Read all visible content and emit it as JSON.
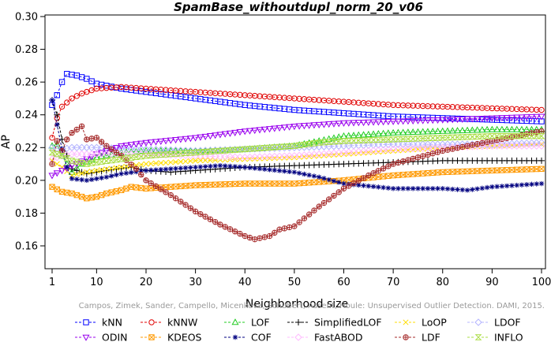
{
  "chart_data": {
    "type": "line",
    "title": "SpamBase_withoutdupl_norm_20_v06",
    "xlabel": "Neighborhood size",
    "ylabel": "AP",
    "xlim": [
      0,
      100
    ],
    "ylim": [
      0.15,
      0.3
    ],
    "x_ticks": [
      1,
      10,
      20,
      30,
      40,
      50,
      60,
      70,
      80,
      90,
      100
    ],
    "y_ticks": [
      0.16,
      0.18,
      0.2,
      0.22,
      0.24,
      0.26,
      0.28,
      0.3
    ],
    "x_tick_labels": [
      "1",
      "10",
      "20",
      "30",
      "40",
      "50",
      "60",
      "70",
      "80",
      "90",
      "100"
    ],
    "y_tick_labels": [
      "0.16",
      "0.18",
      "0.20",
      "0.22",
      "0.24",
      "0.26",
      "0.28",
      "0.30"
    ],
    "legend_position": "bottom",
    "series": [
      {
        "name": "kNN",
        "color": "#0000ff",
        "marker": "square",
        "points": [
          [
            1,
            0.246
          ],
          [
            2,
            0.252
          ],
          [
            3,
            0.26
          ],
          [
            4,
            0.265
          ],
          [
            6,
            0.264
          ],
          [
            8,
            0.262
          ],
          [
            10,
            0.259
          ],
          [
            15,
            0.256
          ],
          [
            20,
            0.254
          ],
          [
            30,
            0.25
          ],
          [
            40,
            0.246
          ],
          [
            50,
            0.243
          ],
          [
            60,
            0.241
          ],
          [
            70,
            0.239
          ],
          [
            80,
            0.238
          ],
          [
            90,
            0.237
          ],
          [
            100,
            0.236
          ]
        ]
      },
      {
        "name": "kNNW",
        "color": "#e00000",
        "marker": "circle",
        "points": [
          [
            1,
            0.226
          ],
          [
            2,
            0.238
          ],
          [
            3,
            0.245
          ],
          [
            5,
            0.25
          ],
          [
            7,
            0.253
          ],
          [
            10,
            0.256
          ],
          [
            15,
            0.257
          ],
          [
            20,
            0.256
          ],
          [
            30,
            0.254
          ],
          [
            40,
            0.252
          ],
          [
            50,
            0.25
          ],
          [
            60,
            0.248
          ],
          [
            70,
            0.246
          ],
          [
            80,
            0.245
          ],
          [
            90,
            0.244
          ],
          [
            100,
            0.243
          ]
        ]
      },
      {
        "name": "LOF",
        "color": "#22cc22",
        "marker": "triangle-up",
        "points": [
          [
            1,
            0.221
          ],
          [
            2,
            0.222
          ],
          [
            3,
            0.215
          ],
          [
            5,
            0.205
          ],
          [
            7,
            0.21
          ],
          [
            10,
            0.214
          ],
          [
            15,
            0.217
          ],
          [
            20,
            0.218
          ],
          [
            30,
            0.218
          ],
          [
            40,
            0.219
          ],
          [
            50,
            0.221
          ],
          [
            55,
            0.224
          ],
          [
            60,
            0.227
          ],
          [
            70,
            0.229
          ],
          [
            80,
            0.23
          ],
          [
            90,
            0.231
          ],
          [
            100,
            0.231
          ]
        ]
      },
      {
        "name": "SimplifiedLOF",
        "color": "#000000",
        "marker": "plus",
        "points": [
          [
            1,
            0.249
          ],
          [
            2,
            0.24
          ],
          [
            3,
            0.225
          ],
          [
            4,
            0.215
          ],
          [
            5,
            0.207
          ],
          [
            8,
            0.204
          ],
          [
            12,
            0.206
          ],
          [
            17,
            0.208
          ],
          [
            20,
            0.206
          ],
          [
            25,
            0.205
          ],
          [
            30,
            0.206
          ],
          [
            40,
            0.208
          ],
          [
            50,
            0.209
          ],
          [
            60,
            0.21
          ],
          [
            70,
            0.211
          ],
          [
            80,
            0.212
          ],
          [
            90,
            0.212
          ],
          [
            100,
            0.212
          ]
        ]
      },
      {
        "name": "LoOP",
        "color": "#ffdd00",
        "marker": "x",
        "points": [
          [
            1,
            0.212
          ],
          [
            3,
            0.208
          ],
          [
            5,
            0.203
          ],
          [
            8,
            0.205
          ],
          [
            10,
            0.206
          ],
          [
            15,
            0.208
          ],
          [
            20,
            0.21
          ],
          [
            30,
            0.212
          ],
          [
            40,
            0.213
          ],
          [
            50,
            0.214
          ],
          [
            60,
            0.216
          ],
          [
            70,
            0.218
          ],
          [
            80,
            0.22
          ],
          [
            90,
            0.221
          ],
          [
            100,
            0.222
          ]
        ]
      },
      {
        "name": "LDOF",
        "color": "#b4b4ff",
        "marker": "diamond",
        "points": [
          [
            1,
            0.22
          ],
          [
            3,
            0.219
          ],
          [
            5,
            0.22
          ],
          [
            10,
            0.22
          ],
          [
            20,
            0.219
          ],
          [
            30,
            0.218
          ],
          [
            40,
            0.219
          ],
          [
            50,
            0.22
          ],
          [
            60,
            0.221
          ],
          [
            70,
            0.222
          ],
          [
            80,
            0.222
          ],
          [
            90,
            0.222
          ],
          [
            100,
            0.223
          ]
        ]
      },
      {
        "name": "ODIN",
        "color": "#9900ee",
        "marker": "triangle-down",
        "points": [
          [
            1,
            0.203
          ],
          [
            3,
            0.206
          ],
          [
            5,
            0.209
          ],
          [
            8,
            0.213
          ],
          [
            10,
            0.216
          ],
          [
            15,
            0.221
          ],
          [
            20,
            0.223
          ],
          [
            30,
            0.226
          ],
          [
            40,
            0.23
          ],
          [
            50,
            0.233
          ],
          [
            60,
            0.235
          ],
          [
            70,
            0.236
          ],
          [
            80,
            0.237
          ],
          [
            90,
            0.238
          ],
          [
            100,
            0.239
          ]
        ]
      },
      {
        "name": "KDEOS",
        "color": "#ff9900",
        "marker": "square-x",
        "points": [
          [
            1,
            0.196
          ],
          [
            3,
            0.193
          ],
          [
            5,
            0.192
          ],
          [
            8,
            0.189
          ],
          [
            10,
            0.19
          ],
          [
            12,
            0.192
          ],
          [
            15,
            0.194
          ],
          [
            17,
            0.196
          ],
          [
            20,
            0.195
          ],
          [
            25,
            0.196
          ],
          [
            30,
            0.197
          ],
          [
            40,
            0.198
          ],
          [
            50,
            0.198
          ],
          [
            60,
            0.2
          ],
          [
            70,
            0.203
          ],
          [
            80,
            0.205
          ],
          [
            90,
            0.206
          ],
          [
            100,
            0.207
          ]
        ]
      },
      {
        "name": "COF",
        "color": "#000080",
        "marker": "asterisk",
        "points": [
          [
            1,
            0.249
          ],
          [
            2,
            0.234
          ],
          [
            3,
            0.219
          ],
          [
            4,
            0.208
          ],
          [
            5,
            0.201
          ],
          [
            8,
            0.2
          ],
          [
            12,
            0.202
          ],
          [
            15,
            0.204
          ],
          [
            20,
            0.206
          ],
          [
            30,
            0.208
          ],
          [
            35,
            0.209
          ],
          [
            40,
            0.208
          ],
          [
            50,
            0.205
          ],
          [
            55,
            0.202
          ],
          [
            60,
            0.198
          ],
          [
            70,
            0.195
          ],
          [
            80,
            0.195
          ],
          [
            85,
            0.194
          ],
          [
            90,
            0.196
          ],
          [
            100,
            0.198
          ]
        ]
      },
      {
        "name": "FastABOD",
        "color": "#ffbbff",
        "marker": "diamond",
        "points": [
          [
            1,
            0.213
          ],
          [
            3,
            0.215
          ],
          [
            5,
            0.216
          ],
          [
            10,
            0.216
          ],
          [
            20,
            0.216
          ],
          [
            30,
            0.215
          ],
          [
            40,
            0.214
          ],
          [
            50,
            0.215
          ],
          [
            60,
            0.217
          ],
          [
            70,
            0.219
          ],
          [
            80,
            0.22
          ],
          [
            90,
            0.221
          ],
          [
            100,
            0.221
          ]
        ]
      },
      {
        "name": "LDF",
        "color": "#a52a2a",
        "marker": "circle-plus",
        "points": [
          [
            1,
            0.21
          ],
          [
            2,
            0.224
          ],
          [
            3,
            0.218
          ],
          [
            4,
            0.225
          ],
          [
            5,
            0.229
          ],
          [
            6,
            0.231
          ],
          [
            7,
            0.233
          ],
          [
            8,
            0.225
          ],
          [
            10,
            0.226
          ],
          [
            12,
            0.221
          ],
          [
            15,
            0.215
          ],
          [
            18,
            0.207
          ],
          [
            20,
            0.2
          ],
          [
            25,
            0.191
          ],
          [
            30,
            0.181
          ],
          [
            35,
            0.173
          ],
          [
            40,
            0.166
          ],
          [
            42,
            0.164
          ],
          [
            45,
            0.166
          ],
          [
            47,
            0.17
          ],
          [
            50,
            0.172
          ],
          [
            55,
            0.184
          ],
          [
            60,
            0.195
          ],
          [
            65,
            0.203
          ],
          [
            70,
            0.21
          ],
          [
            80,
            0.218
          ],
          [
            90,
            0.224
          ],
          [
            100,
            0.23
          ]
        ]
      },
      {
        "name": "INFLO",
        "color": "#aadd44",
        "marker": "hourglass",
        "points": [
          [
            1,
            0.217
          ],
          [
            3,
            0.215
          ],
          [
            5,
            0.212
          ],
          [
            8,
            0.21
          ],
          [
            10,
            0.211
          ],
          [
            15,
            0.213
          ],
          [
            20,
            0.215
          ],
          [
            30,
            0.217
          ],
          [
            40,
            0.219
          ],
          [
            50,
            0.221
          ],
          [
            55,
            0.223
          ],
          [
            60,
            0.224
          ],
          [
            70,
            0.225
          ],
          [
            80,
            0.226
          ],
          [
            90,
            0.227
          ],
          [
            100,
            0.227
          ]
        ]
      }
    ]
  },
  "watermark": "Campos, Zimek, Sander, Campello, Micenkova, Schubert, Assent, Houle: Unsupervised Outlier Detection. DAMI, 2015."
}
